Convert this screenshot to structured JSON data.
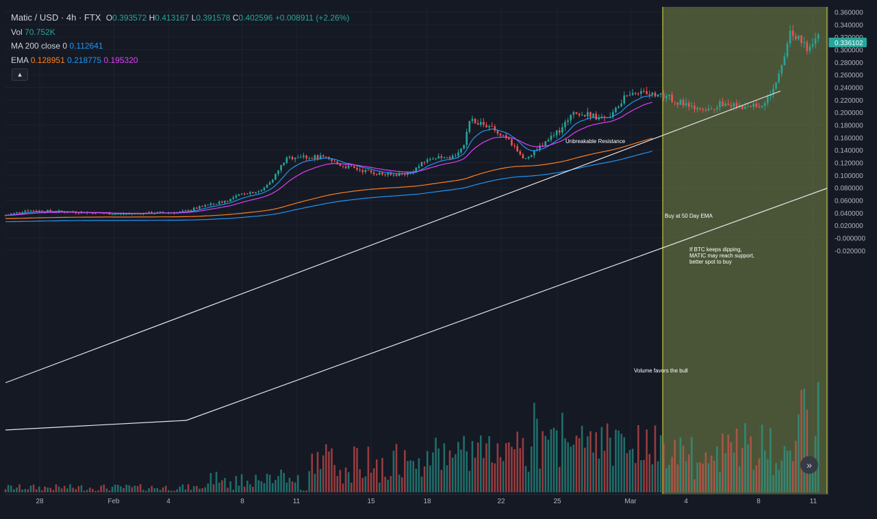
{
  "legend": {
    "title": "Matic / USD · 4h · FTX",
    "open_label": "O",
    "open": "0.393572",
    "high_label": "H",
    "high": "0.413167",
    "low_label": "L",
    "low": "0.391578",
    "close_label": "C",
    "close": "0.402596",
    "change": "+0.008911 (+2.26%)",
    "vol_label": "Vol",
    "vol": "70.752K",
    "ma_label": "MA 200 close 0",
    "ma": "0.112641",
    "ema_label": "EMA",
    "ema1": "0.128951",
    "ema2": "0.218775",
    "ema3": "0.195320",
    "collapse_icon": "▴"
  },
  "scroll_icon": "»",
  "colors": {
    "bg": "#151924",
    "up": "#26a69a",
    "down": "#ef5350",
    "grid": "#1e2230",
    "highlight": "#6b7a43",
    "highlight_border": "#c6c93a"
  },
  "chart_data": {
    "type": "candlestick",
    "title": "Matic / USD · 4h · FTX",
    "y_ticks": [
      "0.360000",
      "0.340000",
      "0.320000",
      "0.300000",
      "0.280000",
      "0.260000",
      "0.240000",
      "0.220000",
      "0.200000",
      "0.180000",
      "0.160000",
      "0.140000",
      "0.120000",
      "0.100000",
      "0.080000",
      "0.060000",
      "0.040000",
      "0.020000",
      "-0.000000",
      "-0.020000"
    ],
    "ylim": [
      -0.02,
      0.36
    ],
    "x_ticks": [
      "28",
      "Feb",
      "4",
      "8",
      "11",
      "15",
      "18",
      "22",
      "25",
      "Mar",
      "4",
      "8",
      "11"
    ],
    "last_price": "0.336102",
    "annotations": [
      "Unbreakable Resistance",
      "Buy at 50 Day EMA",
      "If BTC keeps dipping,",
      "MATIC may reach support,",
      "better spot to buy",
      "Volume favors the bull"
    ],
    "trendlines": [
      {
        "name": "resistance",
        "points": [
          [
            0.065,
            0.0
          ],
          [
            0.297,
            1.0
          ]
        ]
      },
      {
        "name": "support",
        "points": [
          [
            0.033,
            0.0
          ],
          [
            0.218,
            1.0
          ]
        ]
      }
    ],
    "price_path": [
      [
        0.0,
        0.036
      ],
      [
        0.03,
        0.044
      ],
      [
        0.08,
        0.042
      ],
      [
        0.13,
        0.04
      ],
      [
        0.17,
        0.038
      ],
      [
        0.22,
        0.04
      ],
      [
        0.26,
        0.041
      ],
      [
        0.3,
        0.052
      ],
      [
        0.33,
        0.06
      ],
      [
        0.355,
        0.072
      ],
      [
        0.38,
        0.075
      ],
      [
        0.4,
        0.1
      ],
      [
        0.415,
        0.125
      ],
      [
        0.43,
        0.13
      ],
      [
        0.47,
        0.128
      ],
      [
        0.5,
        0.115
      ],
      [
        0.54,
        0.105
      ],
      [
        0.57,
        0.1
      ],
      [
        0.6,
        0.104
      ],
      [
        0.63,
        0.128
      ],
      [
        0.66,
        0.125
      ],
      [
        0.68,
        0.15
      ],
      [
        0.69,
        0.19
      ],
      [
        0.72,
        0.175
      ],
      [
        0.75,
        0.15
      ],
      [
        0.77,
        0.125
      ],
      [
        0.79,
        0.145
      ],
      [
        0.82,
        0.17
      ],
      [
        0.84,
        0.2
      ],
      [
        0.87,
        0.195
      ],
      [
        0.89,
        0.19
      ],
      [
        0.92,
        0.225
      ],
      [
        0.945,
        0.235
      ],
      [
        0.96,
        0.23
      ],
      [
        0.98,
        0.225
      ],
      [
        1.0,
        0.215
      ],
      [
        1.02,
        0.205
      ],
      [
        1.04,
        0.2
      ],
      [
        1.06,
        0.215
      ],
      [
        1.09,
        0.208
      ],
      [
        1.12,
        0.212
      ],
      [
        1.14,
        0.235
      ],
      [
        1.155,
        0.29
      ],
      [
        1.165,
        0.33
      ],
      [
        1.18,
        0.31
      ],
      [
        1.195,
        0.3
      ],
      [
        1.205,
        0.33
      ]
    ]
  }
}
